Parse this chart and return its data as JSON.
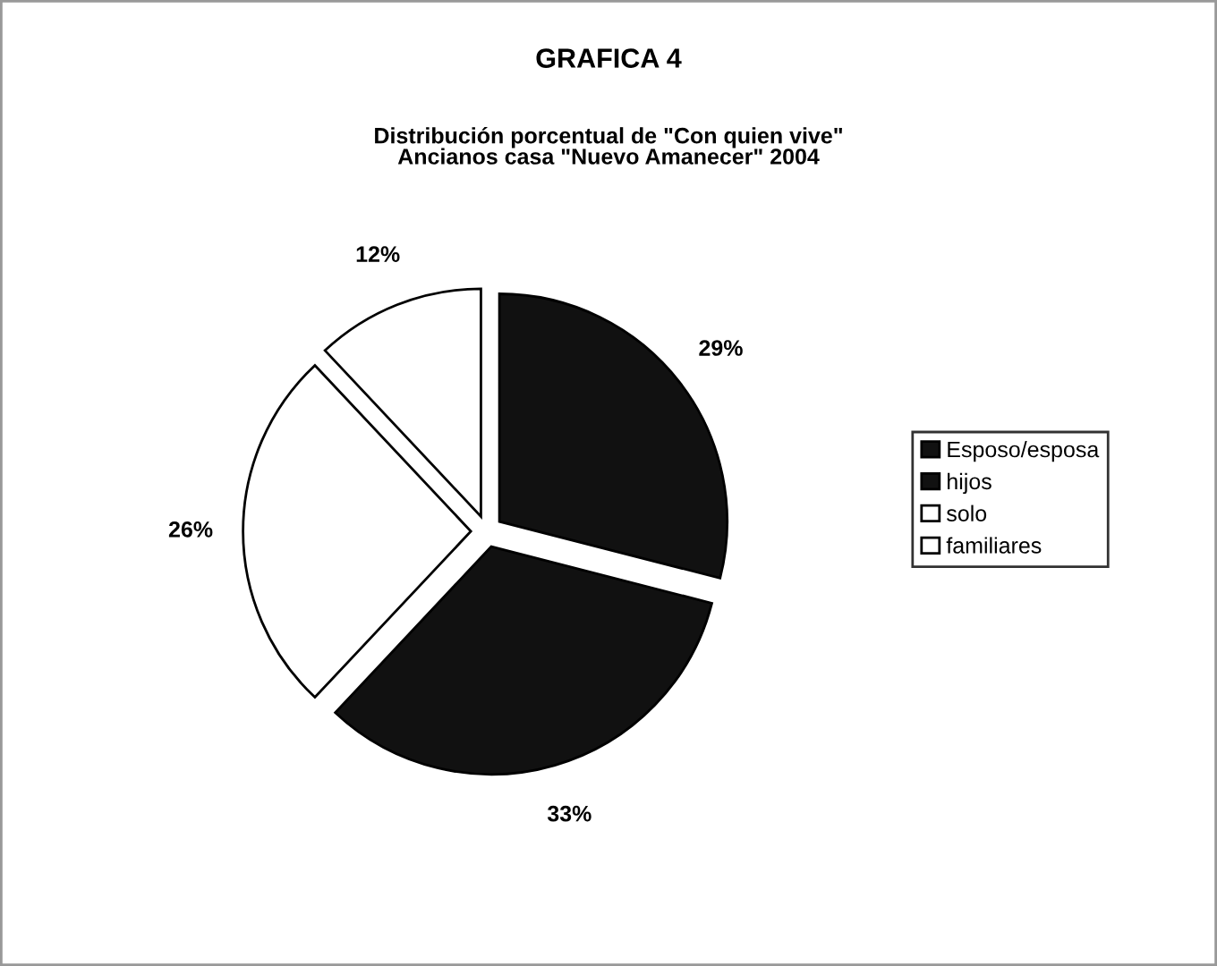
{
  "chart_data": {
    "type": "pie",
    "title": "GRAFICA 4",
    "subtitle": "Distribución porcentual de \"Con quien vive\"\nAncianos casa \"Nuevo Amanecer\" 2004",
    "categories": [
      "Esposo/esposa",
      "hijos",
      "solo",
      "familiares"
    ],
    "values": [
      29,
      33,
      26,
      12
    ],
    "value_labels": [
      "29%",
      "33%",
      "26%",
      "12%"
    ],
    "colors": [
      "#111111",
      "#111111",
      "#ffffff",
      "#ffffff"
    ],
    "legend": "right"
  }
}
